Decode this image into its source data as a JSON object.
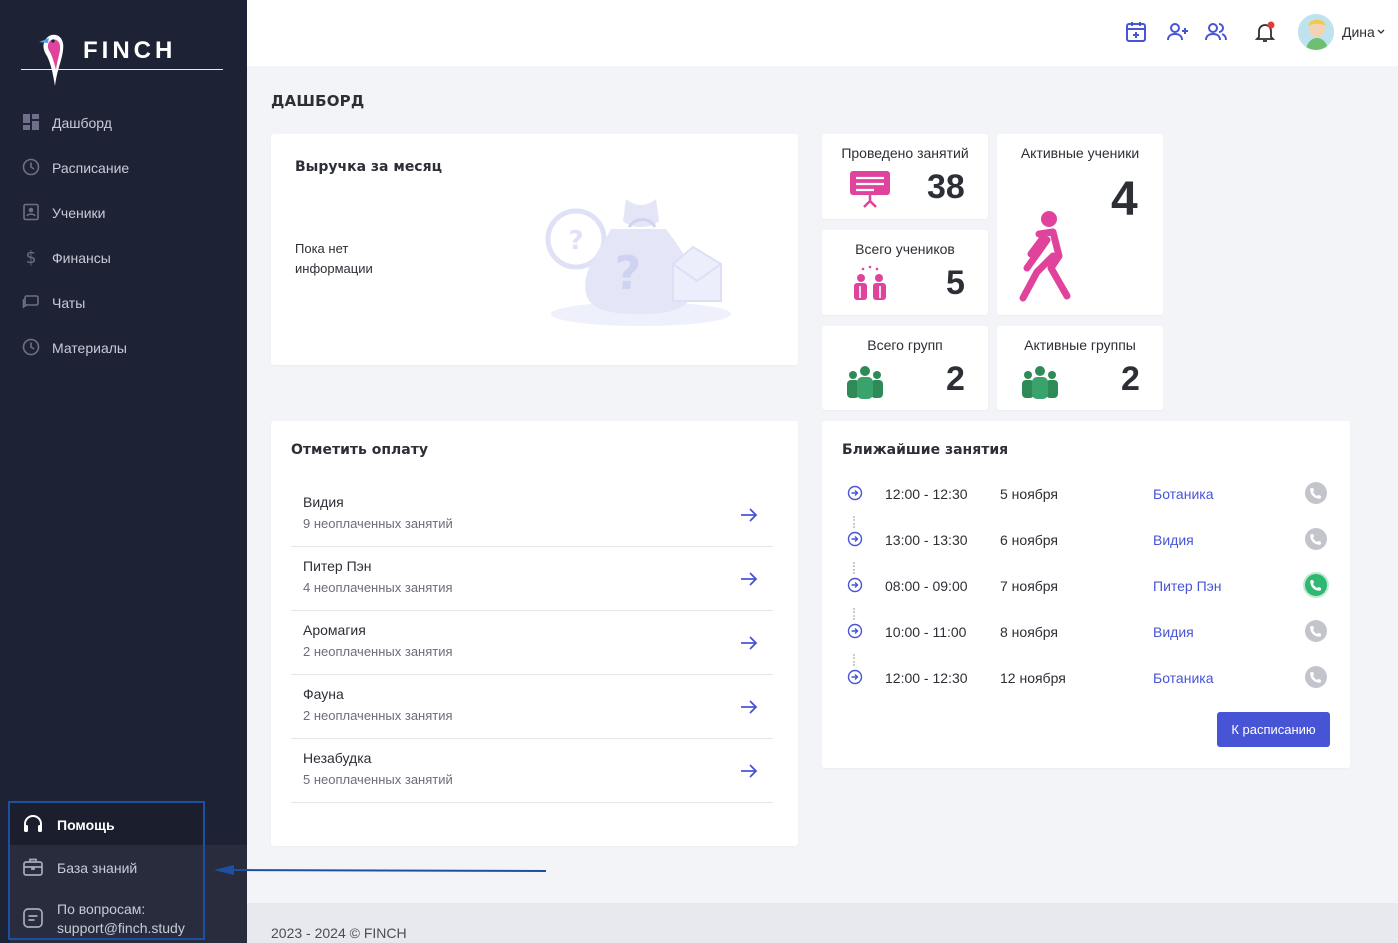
{
  "brand": {
    "name": "FINCH"
  },
  "sidebar": {
    "items": [
      {
        "label": "Дашборд",
        "icon": "dashboard-grid-icon"
      },
      {
        "label": "Расписание",
        "icon": "clock-icon"
      },
      {
        "label": "Ученики",
        "icon": "student-card-icon"
      },
      {
        "label": "Финансы",
        "icon": "dollar-icon"
      },
      {
        "label": "Чаты",
        "icon": "chat-icon"
      },
      {
        "label": "Материалы",
        "icon": "clock-icon"
      }
    ],
    "help": {
      "label": "Помощь",
      "icon": "headset-icon"
    },
    "knowledge": {
      "label": "База знаний",
      "icon": "briefcase-icon"
    },
    "contact": {
      "line1": "По вопросам:",
      "line2": "support@finch.study",
      "icon": "document-icon"
    }
  },
  "topbar": {
    "username": "Дина",
    "icons": [
      "add-calendar-icon",
      "add-user-icon",
      "users-icon",
      "bell-icon"
    ],
    "notification_color": "#e53935"
  },
  "page": {
    "title": "ДАШБОРД"
  },
  "revenue": {
    "title": "Выручка за месяц",
    "empty_line1": "Пока нет",
    "empty_line2": "информации"
  },
  "stats": {
    "lessons_done": {
      "label": "Проведено занятий",
      "value": "38"
    },
    "active_students": {
      "label": "Активные ученики",
      "value": "4"
    },
    "total_students": {
      "label": "Всего учеников",
      "value": "5"
    },
    "total_groups": {
      "label": "Всего групп",
      "value": "2"
    },
    "active_groups": {
      "label": "Активные группы",
      "value": "2"
    }
  },
  "payments": {
    "title": "Отметить оплату",
    "rows": [
      {
        "name": "Видия",
        "sub": "9 неоплаченных занятий"
      },
      {
        "name": "Питер Пэн",
        "sub": "4 неоплаченных занятия"
      },
      {
        "name": "Аромагия",
        "sub": "2 неоплаченных занятия"
      },
      {
        "name": "Фауна",
        "sub": "2 неоплаченных занятия"
      },
      {
        "name": "Незабудка",
        "sub": "5 неоплаченных занятий"
      }
    ]
  },
  "upcoming": {
    "title": "Ближайшие занятия",
    "rows": [
      {
        "time": "12:00 - 12:30",
        "date": "5 ноября",
        "student": "Ботаника",
        "call_active": false
      },
      {
        "time": "13:00 - 13:30",
        "date": "6 ноября",
        "student": "Видия",
        "call_active": false
      },
      {
        "time": "08:00 - 09:00",
        "date": "7 ноября",
        "student": "Питер Пэн",
        "call_active": true
      },
      {
        "time": "10:00 - 11:00",
        "date": "8 ноября",
        "student": "Видия",
        "call_active": false
      },
      {
        "time": "12:00 - 12:30",
        "date": "12 ноября",
        "student": "Ботаника",
        "call_active": false
      }
    ],
    "button": "К расписанию"
  },
  "colors": {
    "accent": "#4754d6",
    "pink": "#e0439b",
    "green": "#2e8b57",
    "sidebar": "#1e2235",
    "call_active": "#2eb872",
    "call_inactive": "#c4c5cc"
  },
  "footer": {
    "text": "2023 - 2024 © FINCH"
  }
}
